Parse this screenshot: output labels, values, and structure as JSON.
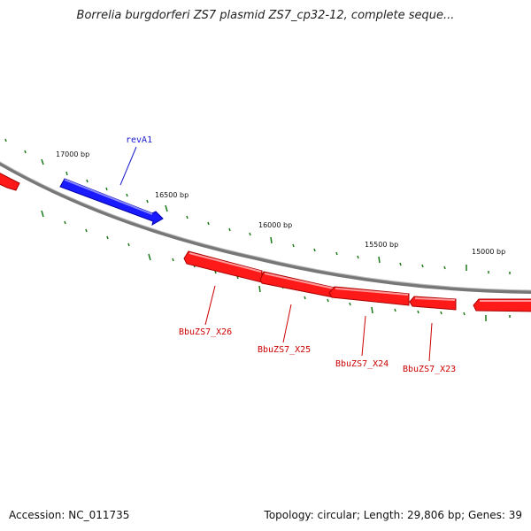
{
  "title": "Borrelia burgdorferi ZS7 plasmid ZS7_cp32-12, complete seque...",
  "footer": {
    "accession": "Accession: NC_011735",
    "summary": "Topology: circular; Length: 29,806 bp; Genes: 39"
  },
  "colors": {
    "backbone": "#808080",
    "forward_gene": "#1a1aff",
    "reverse_gene": "#ff1a1a",
    "tick": "#1a7a1a",
    "forward_label": "#1a1acc",
    "reverse_label": "#cc0000"
  },
  "scale_ticks": [
    {
      "label": "17000 bp"
    },
    {
      "label": "16500 bp"
    },
    {
      "label": "16000 bp"
    },
    {
      "label": "15500 bp"
    },
    {
      "label": "15000 bp"
    }
  ],
  "genes": [
    {
      "name": "revA1",
      "strand": "forward",
      "labeled": true
    },
    {
      "name": "BbuZS7_X26",
      "strand": "reverse",
      "labeled": true
    },
    {
      "name": "BbuZS7_X25",
      "strand": "reverse",
      "labeled": true
    },
    {
      "name": "BbuZS7_X24",
      "strand": "reverse",
      "labeled": true
    },
    {
      "name": "BbuZS7_X23",
      "strand": "reverse",
      "labeled": true
    }
  ]
}
